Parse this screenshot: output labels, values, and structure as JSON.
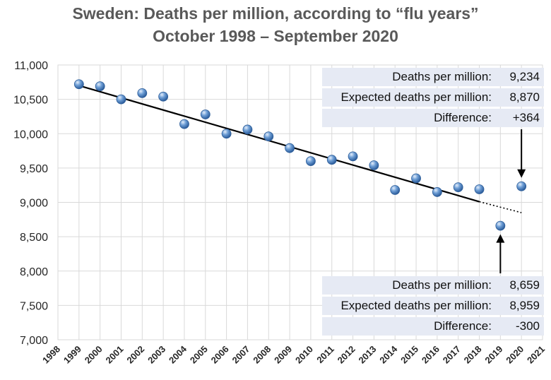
{
  "chart_data": {
    "type": "scatter",
    "title": "Sweden: Deaths per million, according to “flu years”",
    "subtitle": "October 1998 – September 2020",
    "xlim": [
      1998,
      2021
    ],
    "ylim": [
      7000,
      11000
    ],
    "y_ticks": [
      "7,000",
      "7,500",
      "8,000",
      "8,500",
      "9,000",
      "9,500",
      "10,000",
      "10,500",
      "11,000"
    ],
    "x_ticks": [
      "1998",
      "1999",
      "2000",
      "2001",
      "2002",
      "2003",
      "2004",
      "2005",
      "2006",
      "2007",
      "2008",
      "2009",
      "2010",
      "2011",
      "2012",
      "2013",
      "2014",
      "2015",
      "2016",
      "2017",
      "2018",
      "2019",
      "2020",
      "2021"
    ],
    "grid": true,
    "points": [
      {
        "x": 1999,
        "y": 10720
      },
      {
        "x": 2000,
        "y": 10690
      },
      {
        "x": 2001,
        "y": 10500
      },
      {
        "x": 2002,
        "y": 10590
      },
      {
        "x": 2003,
        "y": 10540
      },
      {
        "x": 2004,
        "y": 10140
      },
      {
        "x": 2005,
        "y": 10280
      },
      {
        "x": 2006,
        "y": 10000
      },
      {
        "x": 2007,
        "y": 10060
      },
      {
        "x": 2008,
        "y": 9960
      },
      {
        "x": 2009,
        "y": 9790
      },
      {
        "x": 2010,
        "y": 9600
      },
      {
        "x": 2011,
        "y": 9620
      },
      {
        "x": 2012,
        "y": 9670
      },
      {
        "x": 2013,
        "y": 9540
      },
      {
        "x": 2014,
        "y": 9180
      },
      {
        "x": 2015,
        "y": 9350
      },
      {
        "x": 2016,
        "y": 9150
      },
      {
        "x": 2017,
        "y": 9220
      },
      {
        "x": 2018,
        "y": 9190
      },
      {
        "x": 2019,
        "y": 8659
      },
      {
        "x": 2020,
        "y": 9234
      }
    ],
    "trend_line": {
      "x_start": 1999,
      "y_start": 10700,
      "x_solid_end": 2018,
      "y_solid_end": 9010,
      "x_end": 2020,
      "y_end": 8850
    },
    "marker_color": "#4f81bd",
    "annotations": [
      {
        "target_year": 2020,
        "position": "top-right",
        "rows": [
          {
            "label": "Deaths per million:",
            "value": "9,234"
          },
          {
            "label": "Expected deaths per million:",
            "value": "8,870"
          },
          {
            "label": "Difference:",
            "value": "+364"
          }
        ]
      },
      {
        "target_year": 2019,
        "position": "bottom-right",
        "rows": [
          {
            "label": "Deaths per million:",
            "value": "8,659"
          },
          {
            "label": "Expected deaths per million:",
            "value": "8,959"
          },
          {
            "label": "Difference:",
            "value": "-300"
          }
        ]
      }
    ]
  }
}
